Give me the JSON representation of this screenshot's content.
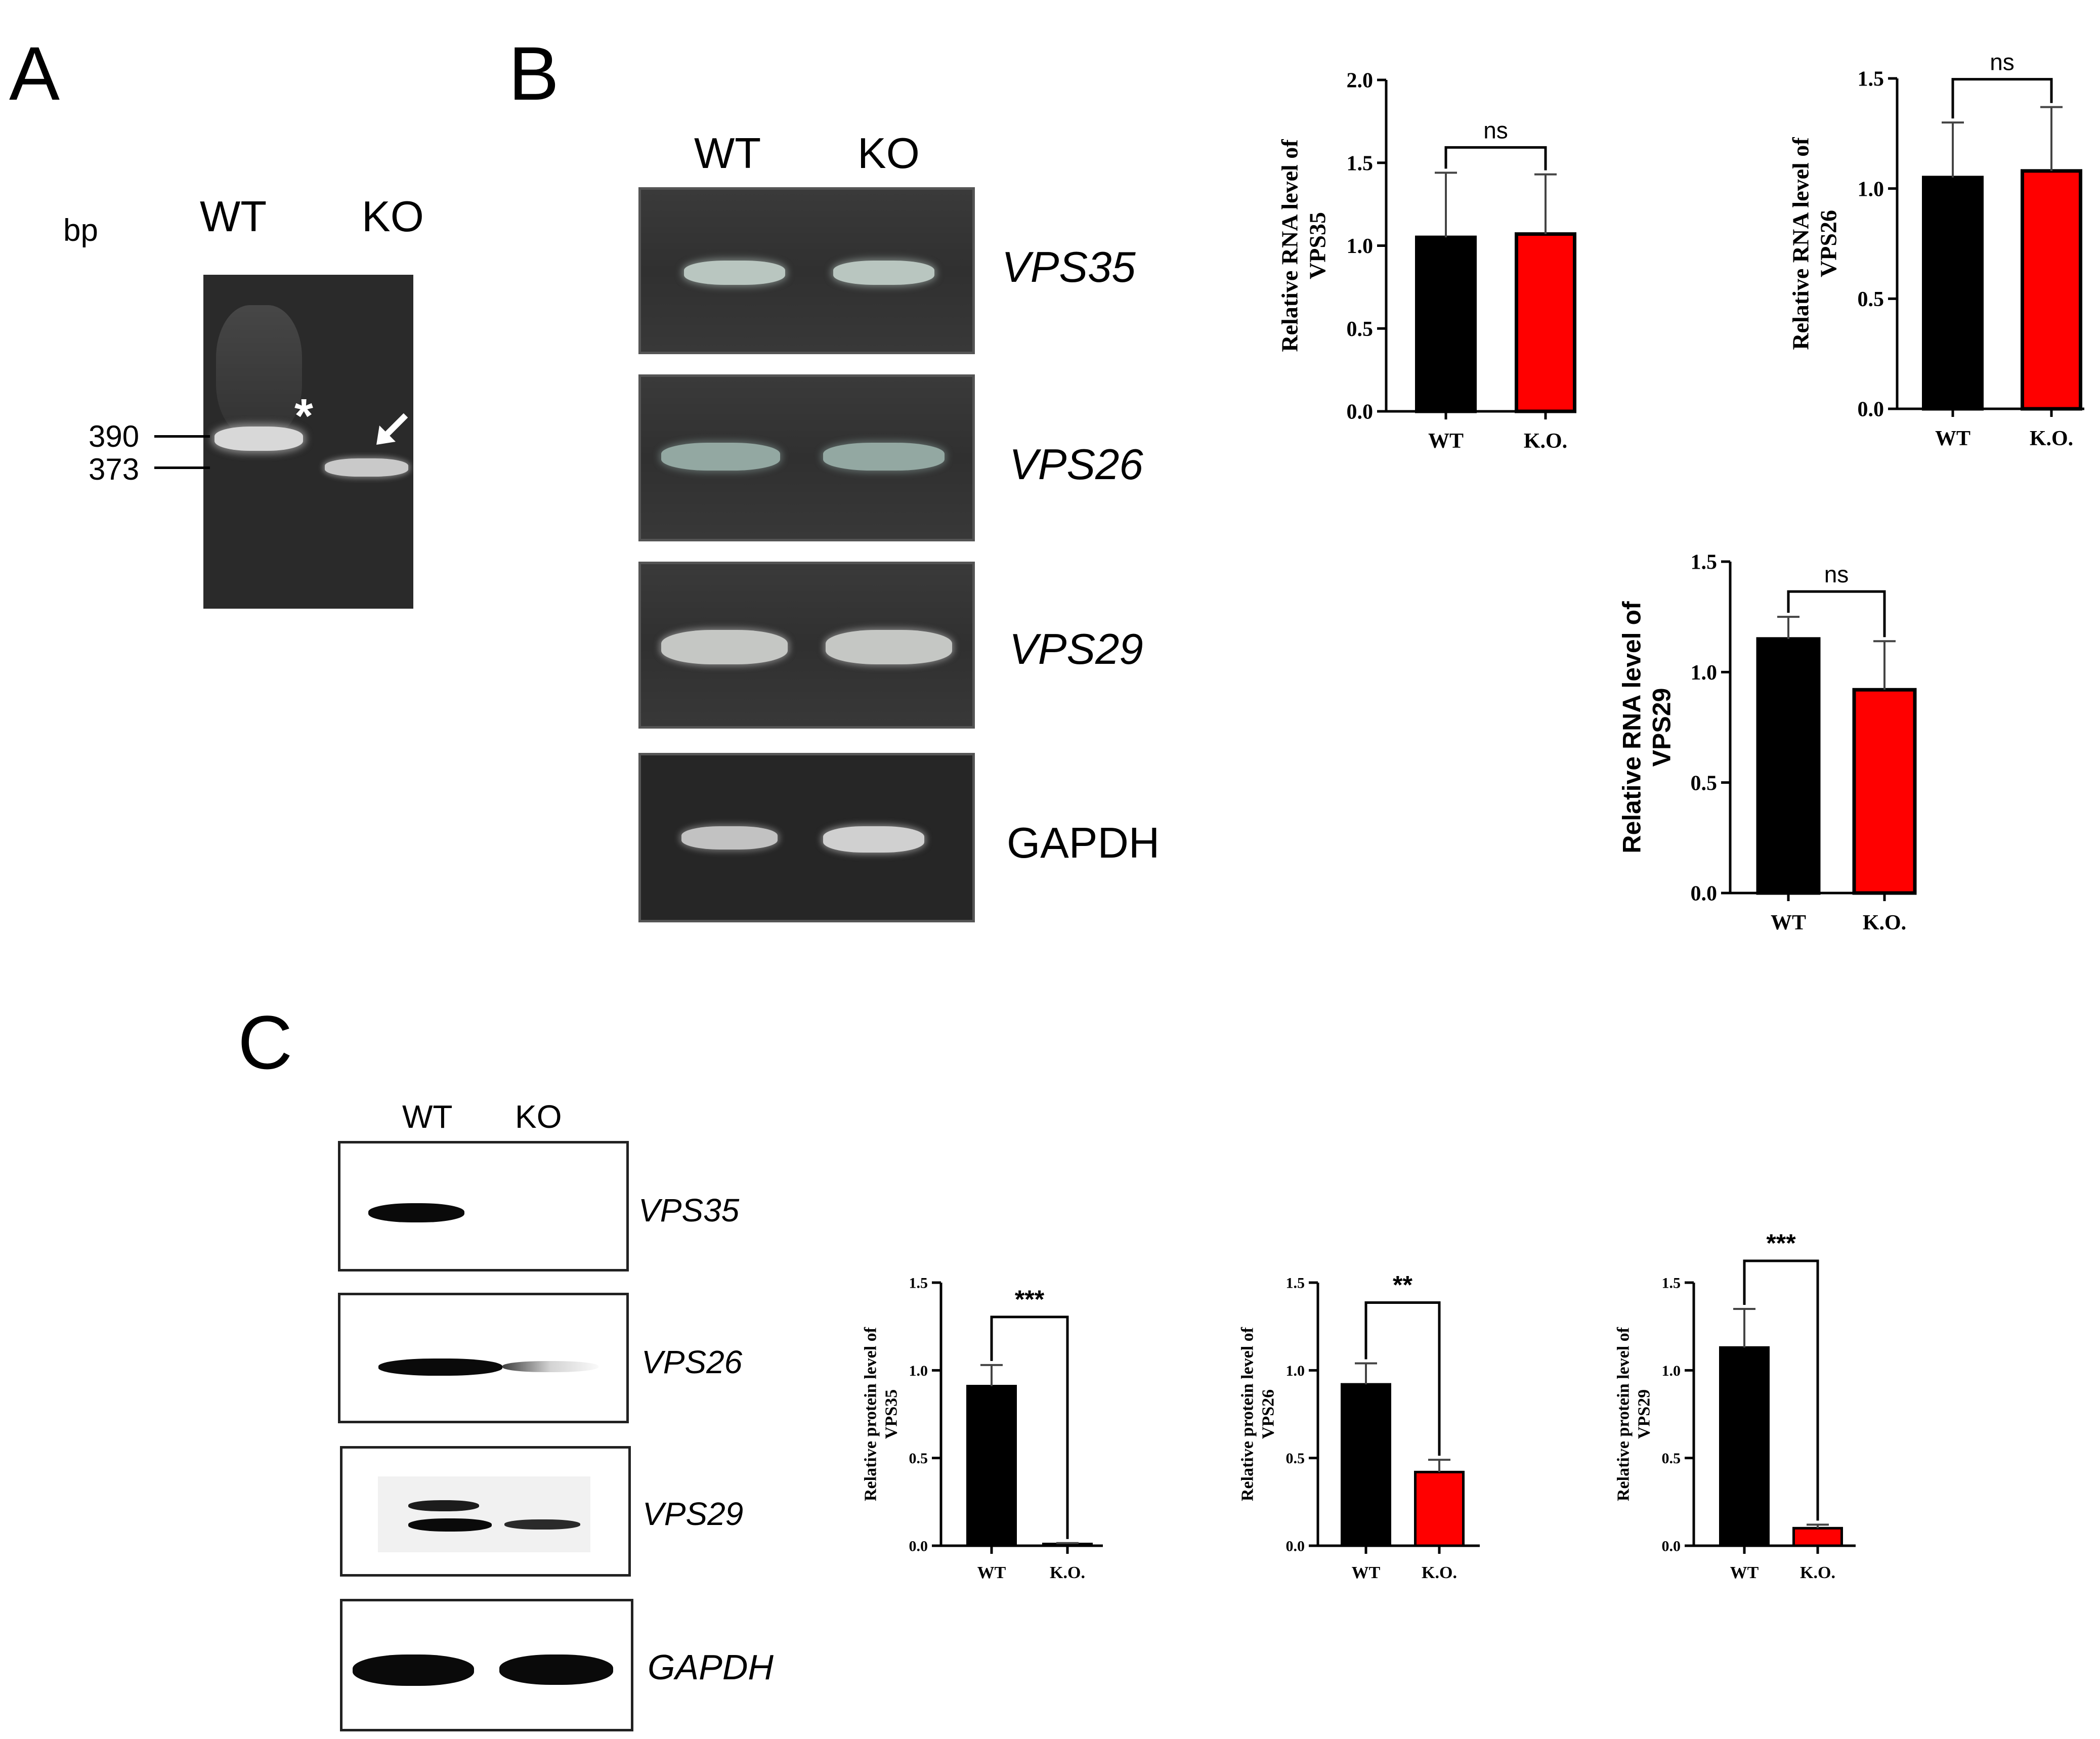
{
  "panels": {
    "a": "A",
    "b": "B",
    "c": "C"
  },
  "panel_a": {
    "unit": "bp",
    "lane_labels": [
      "WT",
      "KO"
    ],
    "marker_labels": [
      "390",
      "373"
    ],
    "asterisk": "*"
  },
  "panel_b": {
    "lane_labels": [
      "WT",
      "KO"
    ],
    "gel_labels": [
      "VPS35",
      "VPS26",
      "VPS29",
      "GAPDH"
    ]
  },
  "panel_c": {
    "lane_labels": [
      "WT",
      "KO"
    ],
    "blot_labels": [
      "VPS35",
      "VPS26",
      "VPS29",
      "GAPDH"
    ]
  },
  "colors": {
    "wt": "#000000",
    "ko": "#ff0000"
  },
  "chart_data": [
    {
      "type": "bar",
      "categories": [
        "WT",
        "K.O."
      ],
      "values": [
        1.05,
        1.07
      ],
      "errors": [
        0.39,
        0.36
      ],
      "ylim": [
        0,
        2.0
      ],
      "yticks": [
        "0.0",
        "0.5",
        "1.0",
        "1.5",
        "2.0"
      ],
      "ylabel": "Relative RNA level of VPS35",
      "ylabel_lines": [
        "Relative RNA level of",
        "VPS35"
      ],
      "significance": "ns"
    },
    {
      "type": "bar",
      "categories": [
        "WT",
        "K.O."
      ],
      "values": [
        1.05,
        1.08
      ],
      "errors": [
        0.25,
        0.29
      ],
      "ylim": [
        0,
        1.5
      ],
      "yticks": [
        "0.0",
        "0.5",
        "1.0",
        "1.5"
      ],
      "ylabel": "Relative RNA level of VPS26",
      "ylabel_lines": [
        "Relative RNA level of",
        "VPS26"
      ],
      "significance": "ns"
    },
    {
      "type": "bar",
      "categories": [
        "WT",
        "K.O."
      ],
      "values": [
        1.15,
        0.92
      ],
      "errors": [
        0.1,
        0.22
      ],
      "ylim": [
        0,
        1.5
      ],
      "yticks": [
        "0.0",
        "0.5",
        "1.0",
        "1.5"
      ],
      "ylabel": "Relative RNA level of VPS29",
      "ylabel_lines": [
        "Relative RNA level of",
        "VPS29"
      ],
      "significance": "ns"
    },
    {
      "type": "bar",
      "categories": [
        "WT",
        "K.O."
      ],
      "values": [
        0.91,
        0.01
      ],
      "errors": [
        0.12,
        0.005
      ],
      "ylim": [
        0,
        1.5
      ],
      "yticks": [
        "0.0",
        "0.5",
        "1.0",
        "1.5"
      ],
      "ylabel": "Relative protein level of VPS35",
      "ylabel_lines": [
        "Relative protein level of",
        "VPS35"
      ],
      "significance": "***"
    },
    {
      "type": "bar",
      "categories": [
        "WT",
        "K.O."
      ],
      "values": [
        0.92,
        0.42
      ],
      "errors": [
        0.12,
        0.07
      ],
      "ylim": [
        0,
        1.5
      ],
      "yticks": [
        "0.0",
        "0.5",
        "1.0",
        "1.5"
      ],
      "ylabel": "Relative protein level of VPS26",
      "ylabel_lines": [
        "Relative protein level of",
        "VPS26"
      ],
      "significance": "**"
    },
    {
      "type": "bar",
      "categories": [
        "WT",
        "K.O."
      ],
      "values": [
        1.13,
        0.1
      ],
      "errors": [
        0.22,
        0.02
      ],
      "ylim": [
        0,
        1.5
      ],
      "yticks": [
        "0.0",
        "0.5",
        "1.0",
        "1.5"
      ],
      "ylabel": "Relative protein level of VPS29",
      "ylabel_lines": [
        "Relative protein level of",
        "VPS29"
      ],
      "significance": "***"
    }
  ]
}
